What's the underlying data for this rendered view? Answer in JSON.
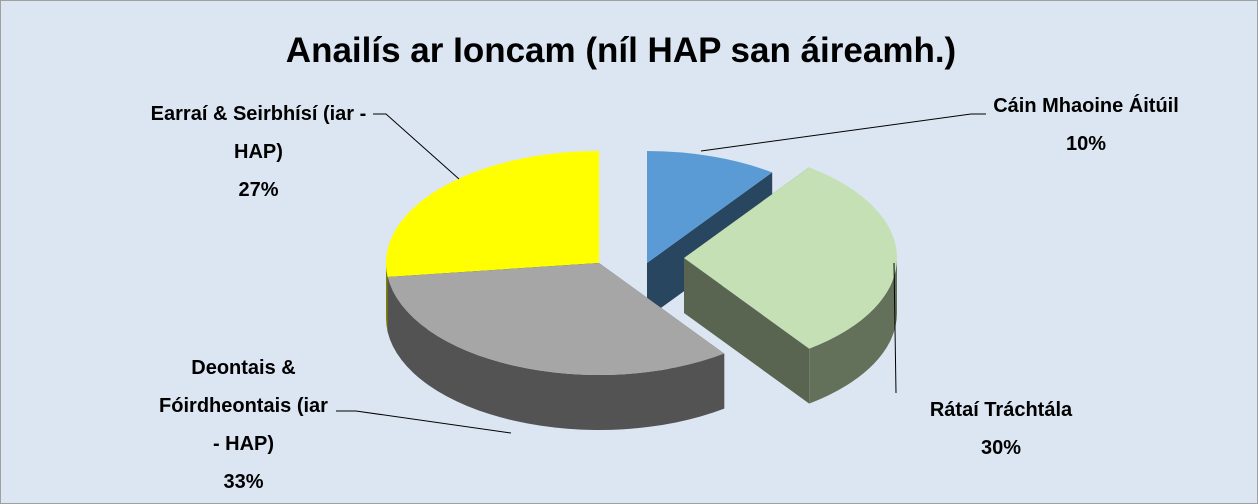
{
  "chart_data": {
    "type": "pie",
    "title": "Anailís ar Ioncam (níl HAP san áireamh.)",
    "categories": [
      "Cáin Mhaoine Áitúil",
      "Rátaí Tráchtála",
      "Deontais & Fóirdheontais (iar - HAP)",
      "Earraí & Seirbhísí (iar - HAP)"
    ],
    "values": [
      10,
      30,
      33,
      27
    ],
    "value_labels": [
      "10%",
      "30%",
      "33%",
      "27%"
    ],
    "colors": [
      "#5b9bd5",
      "#c5e0b4",
      "#a6a6a6",
      "#ffff00"
    ]
  }
}
